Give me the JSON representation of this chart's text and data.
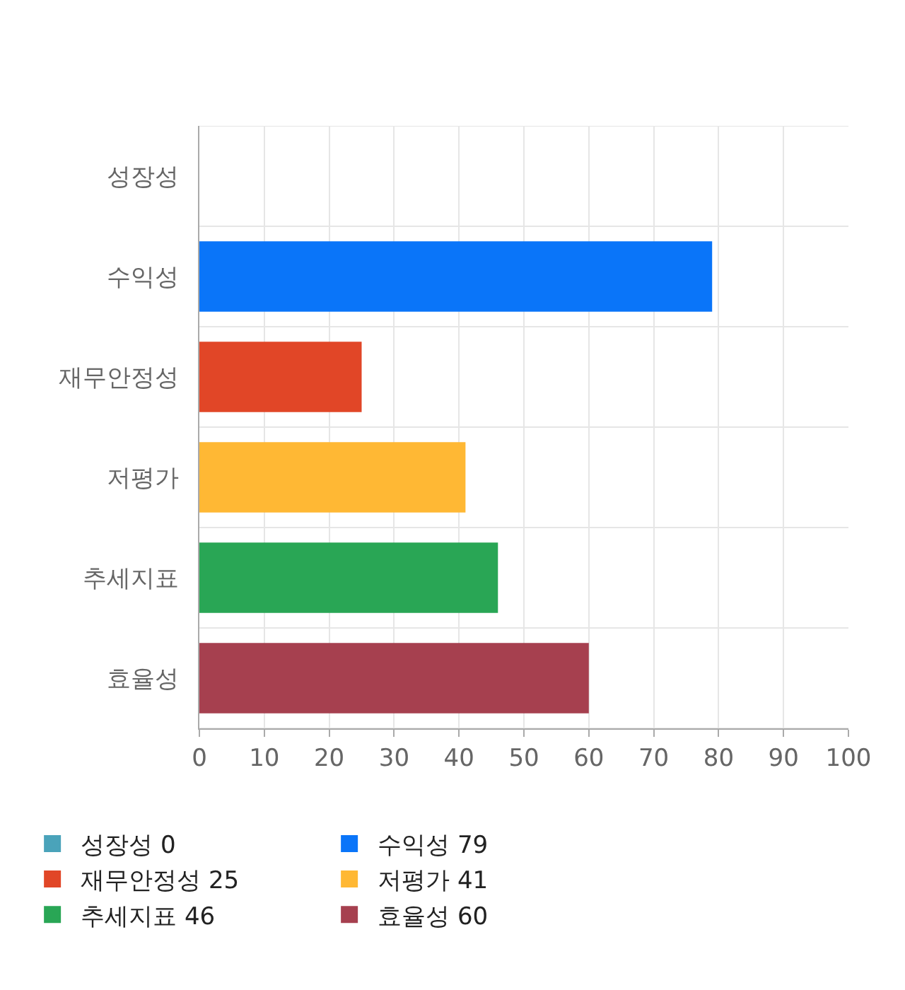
{
  "chart_data": {
    "type": "bar",
    "orientation": "horizontal",
    "categories": [
      "성장성",
      "수익성",
      "재무안정성",
      "저평가",
      "추세지표",
      "효율성"
    ],
    "series": [
      {
        "name": "성장성 0",
        "color": "#4aa3ba",
        "values": [
          0,
          null,
          null,
          null,
          null,
          null
        ]
      },
      {
        "name": "수익성 79",
        "color": "#0a75f9",
        "values": [
          null,
          79,
          null,
          null,
          null,
          null
        ]
      },
      {
        "name": "재무안정성 25",
        "color": "#e14627",
        "values": [
          null,
          null,
          25,
          null,
          null,
          null
        ]
      },
      {
        "name": "저평가 41",
        "color": "#ffb834",
        "values": [
          null,
          null,
          null,
          41,
          null,
          null
        ]
      },
      {
        "name": "추세지표 46",
        "color": "#29a655",
        "values": [
          null,
          null,
          null,
          null,
          46,
          null
        ]
      },
      {
        "name": "효율성 60",
        "color": "#a6404f",
        "values": [
          null,
          null,
          null,
          null,
          null,
          60
        ]
      }
    ],
    "xlim": [
      0,
      100
    ],
    "xticks": [
      0,
      10,
      20,
      30,
      40,
      50,
      60,
      70,
      80,
      90,
      100
    ],
    "grid": true,
    "legend": "bottom"
  }
}
